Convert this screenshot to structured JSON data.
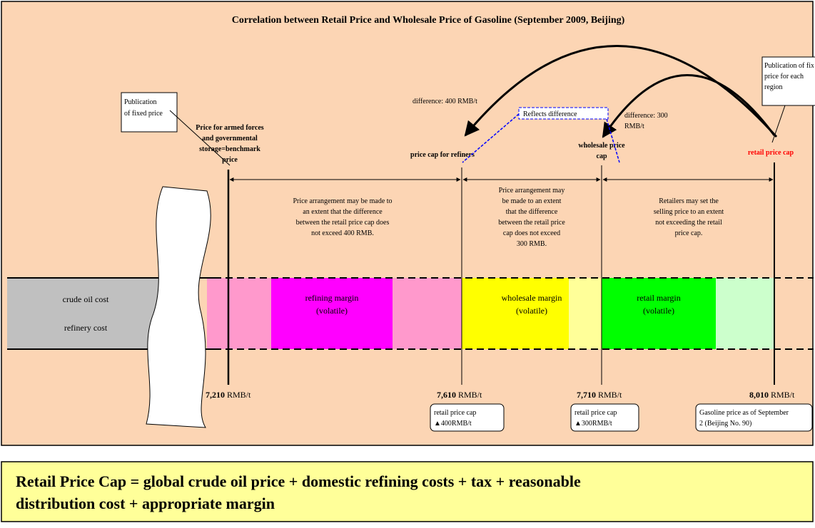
{
  "title": "Correlation between Retail Price and Wholesale Price of Gasoline (September 2009, Beijing)",
  "left_callout": [
    "Publication",
    "of fixed price"
  ],
  "right_callout": [
    "Publication of fixed",
    "price for each",
    "region"
  ],
  "markers": [
    {
      "label": [
        "Price for armed forces",
        "and governmental",
        "storage=benchmark",
        "price"
      ],
      "value": "7,210",
      "unit": "RMB/t"
    },
    {
      "label": [
        "price cap for refiners"
      ],
      "value": "7,610",
      "unit": "RMB/t"
    },
    {
      "label": [
        "wholesale price",
        "cap"
      ],
      "value": "7,710",
      "unit": "RMB/t"
    },
    {
      "label": [
        "retail price cap"
      ],
      "value": "8,010",
      "unit": "RMB/t"
    }
  ],
  "descriptions": [
    [
      "Price arrangement may be made to",
      "an extent that the difference",
      "between the retail price cap does",
      "not exceed 400 RMB."
    ],
    [
      "Price arrangement may",
      "be made to an extent",
      "that the difference",
      "between the retail price",
      "cap does not exceed",
      "300 RMB."
    ],
    [
      "Retailers may set the",
      "selling price to an extent",
      "not exceeding the retail",
      "price cap."
    ]
  ],
  "differences": [
    [
      "difference: 400 RMB/t"
    ],
    [
      "difference: 300",
      "RMB/t"
    ]
  ],
  "reflects": "Reflects difference",
  "band": {
    "crude": "crude oil cost",
    "refinery": "refinery cost",
    "refining": [
      "refining margin",
      "(volatile)"
    ],
    "wholesale": [
      "wholesale margin",
      "(volatile)"
    ],
    "retail": [
      "retail margin",
      "(volatile)"
    ]
  },
  "notes": [
    [
      "retail price cap",
      "▲400RMB/t"
    ],
    [
      "retail price cap",
      "▲300RMB/t"
    ],
    [
      "Gasoline price as of September",
      "2 (Beijing No. 90)"
    ]
  ],
  "formula": [
    "Retail Price Cap = global crude oil price + domestic refining costs + tax + reasonable",
    "distribution cost + appropriate margin"
  ]
}
